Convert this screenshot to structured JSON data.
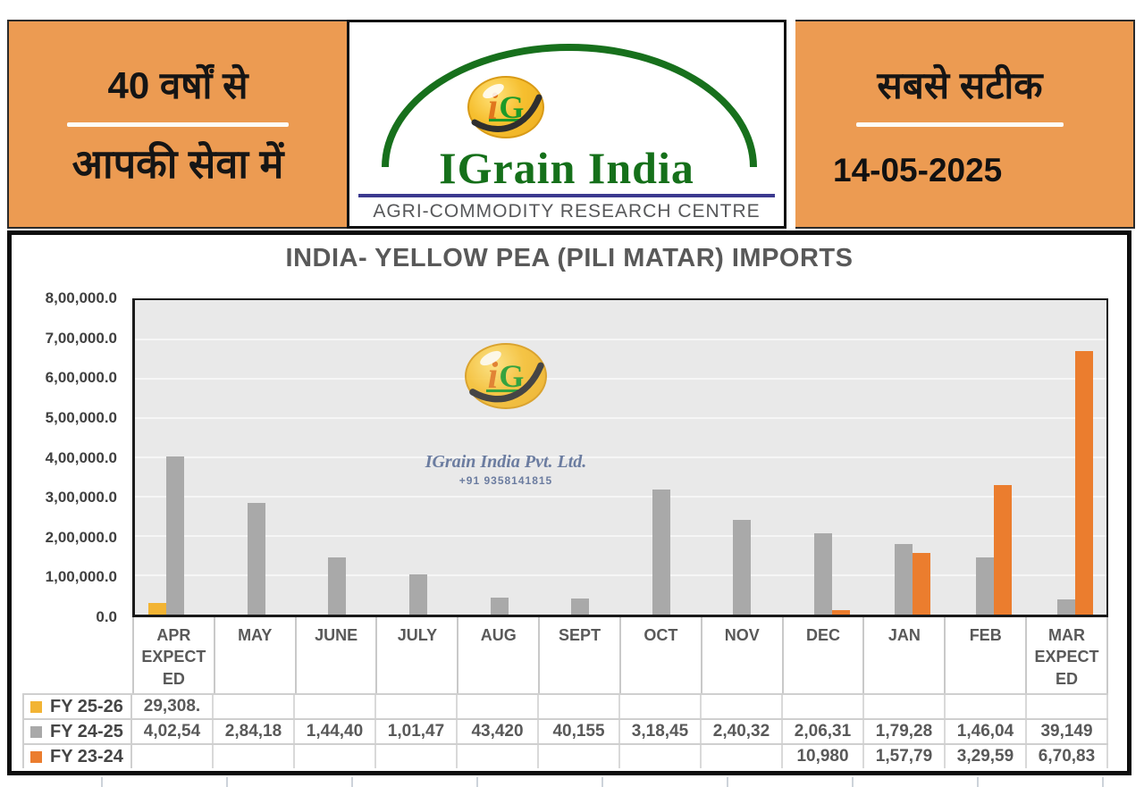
{
  "header": {
    "left": {
      "line1": "40 वर्षों से",
      "line2": "आपकी सेवा में"
    },
    "logo": {
      "monogram_i": "i",
      "monogram_g": "G",
      "brand": "IGrain India",
      "tagline": "AGRI-COMMODITY RESEARCH CENTRE"
    },
    "right": {
      "tagline": "सबसे सटीक",
      "date": "14-05-2025"
    }
  },
  "watermark": {
    "company": "IGrain India Pvt. Ltd.",
    "phone": "+91 9358141815"
  },
  "chart_data": {
    "type": "bar",
    "title": "INDIA- YELLOW PEA (PILI MATAR) IMPORTS",
    "xlabel": "",
    "ylabel": "",
    "ylim": [
      0,
      800000
    ],
    "grid": true,
    "legend_position": "table-left",
    "y_ticks": [
      "8,00,000.0",
      "7,00,000.0",
      "6,00,000.0",
      "5,00,000.0",
      "4,00,000.0",
      "3,00,000.0",
      "2,00,000.0",
      "1,00,000.0",
      "0.0"
    ],
    "categories": [
      "APR EXPECTED",
      "MAY",
      "JUNE",
      "JULY",
      "AUG",
      "SEPT",
      "OCT",
      "NOV",
      "DEC",
      "JAN",
      "FEB",
      "MAR EXPECTED"
    ],
    "categories_display": [
      [
        "APR",
        "EXPECT",
        "ED"
      ],
      [
        "MAY"
      ],
      [
        "JUNE"
      ],
      [
        "JULY"
      ],
      [
        "AUG"
      ],
      [
        "SEPT"
      ],
      [
        "OCT"
      ],
      [
        "NOV"
      ],
      [
        "DEC"
      ],
      [
        "JAN"
      ],
      [
        "FEB"
      ],
      [
        "MAR",
        "EXPECT",
        "ED"
      ]
    ],
    "series": [
      {
        "name": "FY 25-26",
        "color": "#F2B434",
        "values": [
          29308,
          null,
          null,
          null,
          null,
          null,
          null,
          null,
          null,
          null,
          null,
          null
        ]
      },
      {
        "name": "FY 24-25",
        "color": "#A9A9A9",
        "values": [
          402540,
          284180,
          144400,
          101470,
          43420,
          40155,
          318450,
          240320,
          206310,
          179280,
          146040,
          39149
        ]
      },
      {
        "name": "FY 23-24",
        "color": "#EB7D2E",
        "values": [
          null,
          null,
          null,
          null,
          null,
          null,
          null,
          null,
          10980,
          157790,
          329590,
          670830
        ]
      }
    ],
    "table_rows": [
      {
        "label": "FY 25-26",
        "swatch_color": "#F2B434",
        "cells": [
          "29,308.",
          "",
          "",
          "",
          "",
          "",
          "",
          "",
          "",
          "",
          "",
          ""
        ]
      },
      {
        "label": "FY 24-25",
        "swatch_color": "#A9A9A9",
        "cells": [
          "4,02,54",
          "2,84,18",
          "1,44,40",
          "1,01,47",
          "43,420",
          "40,155",
          "3,18,45",
          "2,40,32",
          "2,06,31",
          "1,79,28",
          "1,46,04",
          "39,149"
        ]
      },
      {
        "label": "FY 23-24",
        "swatch_color": "#EB7D2E",
        "cells": [
          "",
          "",
          "",
          "",
          "",
          "",
          "",
          "",
          "10,980",
          "1,57,79",
          "3,29,59",
          "6,70,83"
        ]
      }
    ],
    "colors": {
      "header_orange": "#EC9B52",
      "plot_background": "#E9E9E9",
      "title_gray": "#595959",
      "logo_green": "#15701A",
      "rule_purple": "#3B3A8F"
    }
  }
}
